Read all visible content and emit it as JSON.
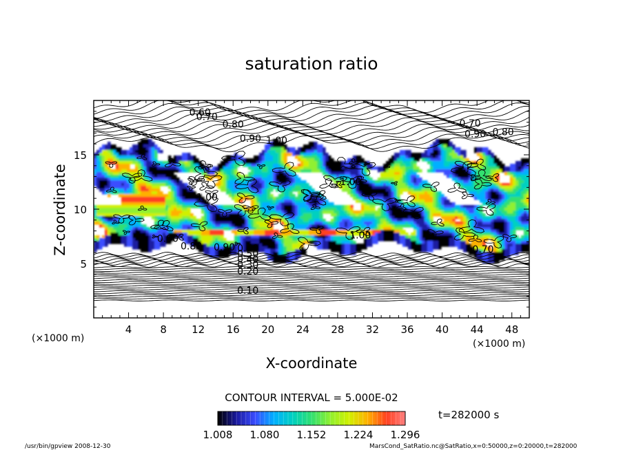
{
  "chart_data": {
    "type": "heatmap",
    "title": "saturation ratio",
    "xlabel": "X-coordinate",
    "ylabel": "Z-coordinate",
    "x_unit": "(×1000 m)",
    "z_unit": "(×1000 m)",
    "xlim": [
      0,
      50
    ],
    "ylim": [
      0,
      20
    ],
    "x_ticks": [
      "4",
      "8",
      "12",
      "16",
      "20",
      "24",
      "28",
      "32",
      "36",
      "40",
      "44",
      "48"
    ],
    "y_ticks": [
      "5",
      "10",
      "15"
    ],
    "contour_interval": "CONTOUR INTERVAL = 5.000E-02",
    "time": "t=282000 s",
    "colorbar_ticks": [
      "1.008",
      "1.080",
      "1.152",
      "1.224",
      "1.296"
    ],
    "colorbar_range": [
      1.008,
      1.296
    ],
    "colorbar_colors": [
      "#000000",
      "#1a1aa0",
      "#3a4dff",
      "#00b0ff",
      "#00d0c0",
      "#30e070",
      "#90f030",
      "#d0f000",
      "#ffb000",
      "#ff4020",
      "#ff8080"
    ],
    "contour_labels": [
      {
        "text": "0.10",
        "x": 17.7,
        "z": 2.2
      },
      {
        "text": "0.20",
        "x": 17.7,
        "z": 4.0
      },
      {
        "text": "0.30",
        "x": 17.7,
        "z": 4.6
      },
      {
        "text": "0.40",
        "x": 17.7,
        "z": 5.1
      },
      {
        "text": "0.50",
        "x": 17.7,
        "z": 5.6
      },
      {
        "text": "0.60",
        "x": 17.7,
        "z": 6.1
      },
      {
        "text": "0.80",
        "x": 11.2,
        "z": 6.3
      },
      {
        "text": "0.90",
        "x": 15.0,
        "z": 6.2
      },
      {
        "text": "0.90",
        "x": 8.5,
        "z": 7.0
      },
      {
        "text": "1.00",
        "x": 29.5,
        "z": 12.2
      },
      {
        "text": "1.00",
        "x": 13.0,
        "z": 10.8
      },
      {
        "text": "1.00",
        "x": 30.6,
        "z": 7.3
      },
      {
        "text": "0.90",
        "x": 18.0,
        "z": 16.2
      },
      {
        "text": "0.80",
        "x": 16.0,
        "z": 17.5
      },
      {
        "text": "0.70",
        "x": 13.0,
        "z": 18.2
      },
      {
        "text": "0.60",
        "x": 12.2,
        "z": 18.6
      },
      {
        "text": "1.00",
        "x": 21.0,
        "z": 16.0
      },
      {
        "text": "0.70",
        "x": 43.2,
        "z": 17.6
      },
      {
        "text": "0.80",
        "x": 47.0,
        "z": 16.8
      },
      {
        "text": "0.90",
        "x": 43.8,
        "z": 16.6
      },
      {
        "text": "0.70",
        "x": 44.7,
        "z": 6.0
      }
    ]
  },
  "footer": {
    "left": "/usr/bin/gpview   2008-12-30",
    "right": "MarsCond_SatRatio.nc@SatRatio,x=0:50000,z=0:20000,t=282000"
  }
}
